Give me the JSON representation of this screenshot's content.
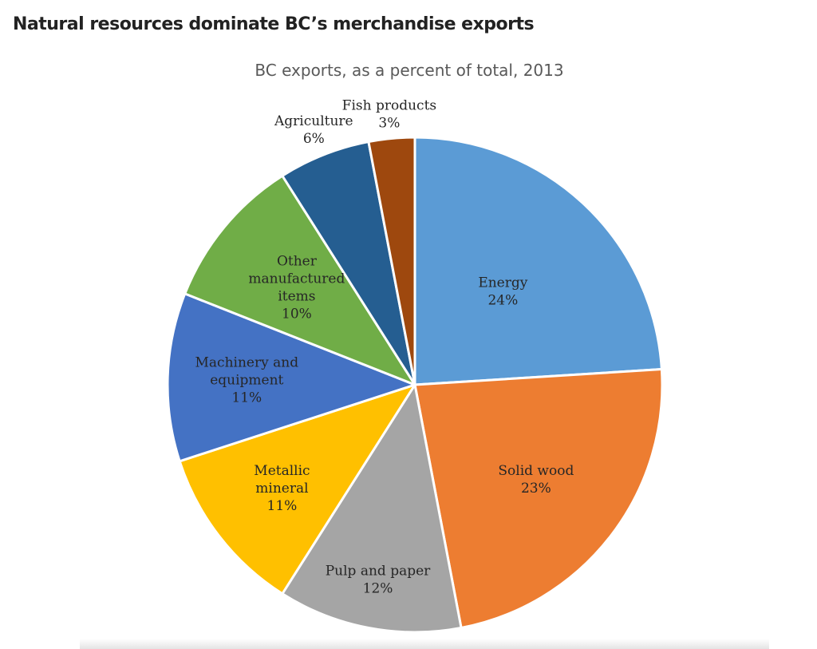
{
  "page": {
    "headline": "Natural resources dominate BC’s merchandise exports"
  },
  "chart_data": {
    "type": "pie",
    "title": "BC exports, as a percent of total, 2013",
    "slices": [
      {
        "label_lines": [
          "Energy"
        ],
        "value_label": "24%",
        "value": 24,
        "color": "#5B9BD5"
      },
      {
        "label_lines": [
          "Solid wood"
        ],
        "value_label": "23%",
        "value": 23,
        "color": "#ED7D31"
      },
      {
        "label_lines": [
          "Pulp and paper"
        ],
        "value_label": "12%",
        "value": 12,
        "color": "#A5A5A5"
      },
      {
        "label_lines": [
          "Metallic",
          "mineral"
        ],
        "value_label": "11%",
        "value": 11,
        "color": "#FFC000"
      },
      {
        "label_lines": [
          "Machinery and",
          "equipment"
        ],
        "value_label": "11%",
        "value": 11,
        "color": "#4472C4"
      },
      {
        "label_lines": [
          "Other",
          "manufactured",
          "items"
        ],
        "value_label": "10%",
        "value": 10,
        "color": "#70AD47"
      },
      {
        "label_lines": [
          "Agriculture"
        ],
        "value_label": "6%",
        "value": 6,
        "color": "#255E91"
      },
      {
        "label_lines": [
          "Fish products"
        ],
        "value_label": "3%",
        "value": 3,
        "color": "#9E480E"
      }
    ]
  }
}
